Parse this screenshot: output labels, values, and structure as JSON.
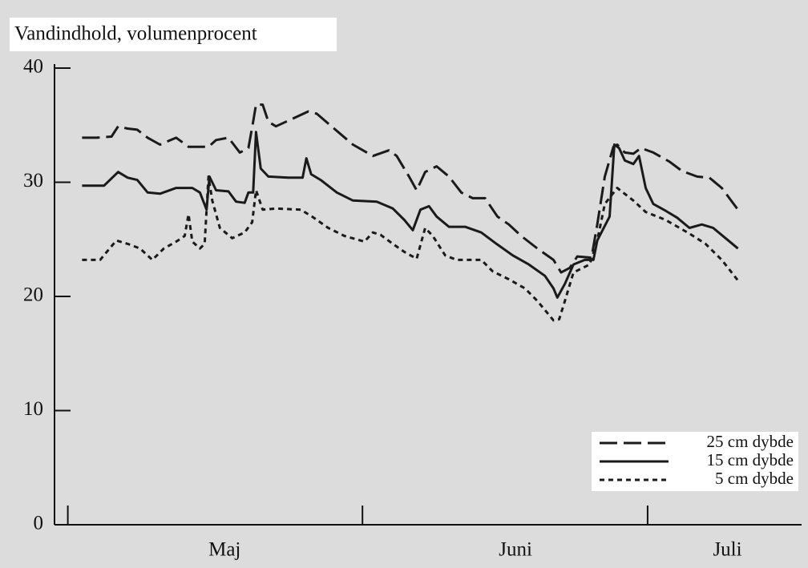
{
  "chart_data": {
    "type": "line",
    "title": "Vandindhold, volumenprocent",
    "xlim": [
      -1.4,
      77.2
    ],
    "ylim": [
      0,
      40
    ],
    "yticks": [
      0,
      10,
      20,
      30,
      40
    ],
    "xticks": [
      0,
      31,
      61
    ],
    "xlabels": [
      {
        "value": 16.5,
        "label": "Maj"
      },
      {
        "value": 47.1,
        "label": "Juni"
      },
      {
        "value": 69.4,
        "label": "Juli"
      }
    ],
    "legend": "lower right",
    "series": [
      {
        "name": "25 cm dybde",
        "color": "#1a1a1a",
        "dash": "22 8",
        "x": [
          1.5,
          3.0,
          4.6,
          5.3,
          6.3,
          7.3,
          8.4,
          9.7,
          11.4,
          12.7,
          14.8,
          15.6,
          16.9,
          18.1,
          19.0,
          19.5,
          19.8,
          20.5,
          21.1,
          21.9,
          23.2,
          25.3,
          26.2,
          28.3,
          30.0,
          32.1,
          33.8,
          34.6,
          35.9,
          36.7,
          37.6,
          38.8,
          40.1,
          41.4,
          42.6,
          43.9,
          45.2,
          46.4,
          47.7,
          49.4,
          51.1,
          51.9,
          52.8,
          53.6,
          55.1,
          55.7,
          56.5,
          57.4,
          57.8,
          58.6,
          59.5,
          60.3,
          61.6,
          63.3,
          64.6,
          66.2,
          67.5,
          68.8,
          69.6,
          70.5
        ],
        "values": [
          33.9,
          33.9,
          34.0,
          34.9,
          34.7,
          34.6,
          33.9,
          33.3,
          33.9,
          33.1,
          33.1,
          33.7,
          33.9,
          32.6,
          33.0,
          35.3,
          36.8,
          36.8,
          35.3,
          34.9,
          35.4,
          36.2,
          36.0,
          34.5,
          33.3,
          32.3,
          32.8,
          32.3,
          30.5,
          29.3,
          30.9,
          31.4,
          30.5,
          29.1,
          28.6,
          28.6,
          27.0,
          26.3,
          25.3,
          24.2,
          23.2,
          22.1,
          22.5,
          23.5,
          23.4,
          26.3,
          30.5,
          33.1,
          33.3,
          32.6,
          32.5,
          33.0,
          32.6,
          31.8,
          31.0,
          30.5,
          30.4,
          29.5,
          28.6,
          27.6
        ]
      },
      {
        "name": "15 cm dybde",
        "color": "#1a1a1a",
        "dash": "none",
        "x": [
          1.5,
          3.8,
          5.3,
          6.3,
          7.3,
          8.4,
          9.7,
          11.4,
          13.1,
          13.9,
          14.6,
          14.9,
          15.6,
          16.9,
          17.7,
          18.6,
          19.0,
          19.5,
          19.8,
          20.3,
          21.1,
          23.2,
          24.7,
          25.1,
          25.6,
          26.6,
          28.3,
          30.0,
          32.5,
          34.2,
          35.4,
          36.3,
          37.1,
          38.0,
          38.8,
          40.1,
          41.8,
          43.5,
          45.1,
          46.8,
          48.5,
          50.2,
          51.1,
          51.5,
          52.3,
          53.2,
          54.4,
          55.3,
          55.7,
          57.0,
          57.5,
          58.0,
          58.6,
          59.5,
          60.1,
          60.8,
          61.6,
          62.9,
          64.1,
          65.4,
          66.7,
          67.9,
          69.2,
          70.5
        ],
        "values": [
          29.7,
          29.7,
          30.9,
          30.4,
          30.2,
          29.1,
          29.0,
          29.5,
          29.5,
          29.1,
          27.6,
          30.5,
          29.3,
          29.2,
          28.3,
          28.2,
          29.1,
          29.1,
          34.4,
          31.2,
          30.5,
          30.4,
          30.4,
          32.1,
          30.7,
          30.2,
          29.1,
          28.4,
          28.3,
          27.7,
          26.7,
          25.8,
          27.6,
          27.9,
          27.0,
          26.1,
          26.1,
          25.6,
          24.6,
          23.6,
          22.8,
          21.8,
          20.7,
          19.9,
          21.1,
          22.8,
          23.2,
          23.2,
          24.9,
          27.0,
          33.3,
          33.0,
          31.9,
          31.6,
          32.3,
          29.5,
          28.1,
          27.5,
          26.9,
          26.0,
          26.3,
          26.0,
          25.1,
          24.2
        ]
      },
      {
        "name": "5 cm dybde",
        "color": "#1a1a1a",
        "dash": "6 5",
        "x": [
          1.5,
          3.4,
          5.1,
          6.3,
          7.6,
          8.9,
          10.1,
          11.4,
          12.3,
          12.7,
          13.1,
          13.9,
          14.4,
          14.8,
          15.2,
          16.0,
          17.3,
          18.6,
          19.4,
          19.8,
          20.5,
          21.9,
          24.5,
          25.7,
          27.4,
          29.1,
          31.2,
          32.1,
          32.9,
          34.2,
          35.4,
          36.7,
          37.6,
          38.4,
          39.7,
          40.9,
          43.5,
          44.7,
          46.4,
          48.1,
          49.4,
          51.1,
          51.7,
          52.3,
          53.2,
          54.9,
          55.7,
          56.5,
          57.8,
          59.5,
          60.8,
          62.9,
          65.4,
          67.1,
          68.8,
          70.5
        ],
        "values": [
          23.2,
          23.2,
          24.9,
          24.6,
          24.2,
          23.2,
          24.2,
          24.8,
          25.3,
          27.2,
          24.8,
          24.2,
          24.6,
          30.5,
          28.4,
          26.0,
          25.1,
          25.6,
          26.5,
          29.3,
          27.6,
          27.7,
          27.6,
          27.0,
          26.0,
          25.3,
          24.8,
          25.6,
          25.4,
          24.6,
          23.9,
          23.3,
          26.0,
          25.3,
          23.6,
          23.2,
          23.2,
          22.2,
          21.5,
          20.7,
          19.6,
          17.9,
          18.0,
          19.6,
          22.1,
          22.8,
          24.9,
          28.1,
          29.5,
          28.4,
          27.4,
          26.7,
          25.5,
          24.6,
          23.2,
          21.4
        ]
      }
    ]
  }
}
